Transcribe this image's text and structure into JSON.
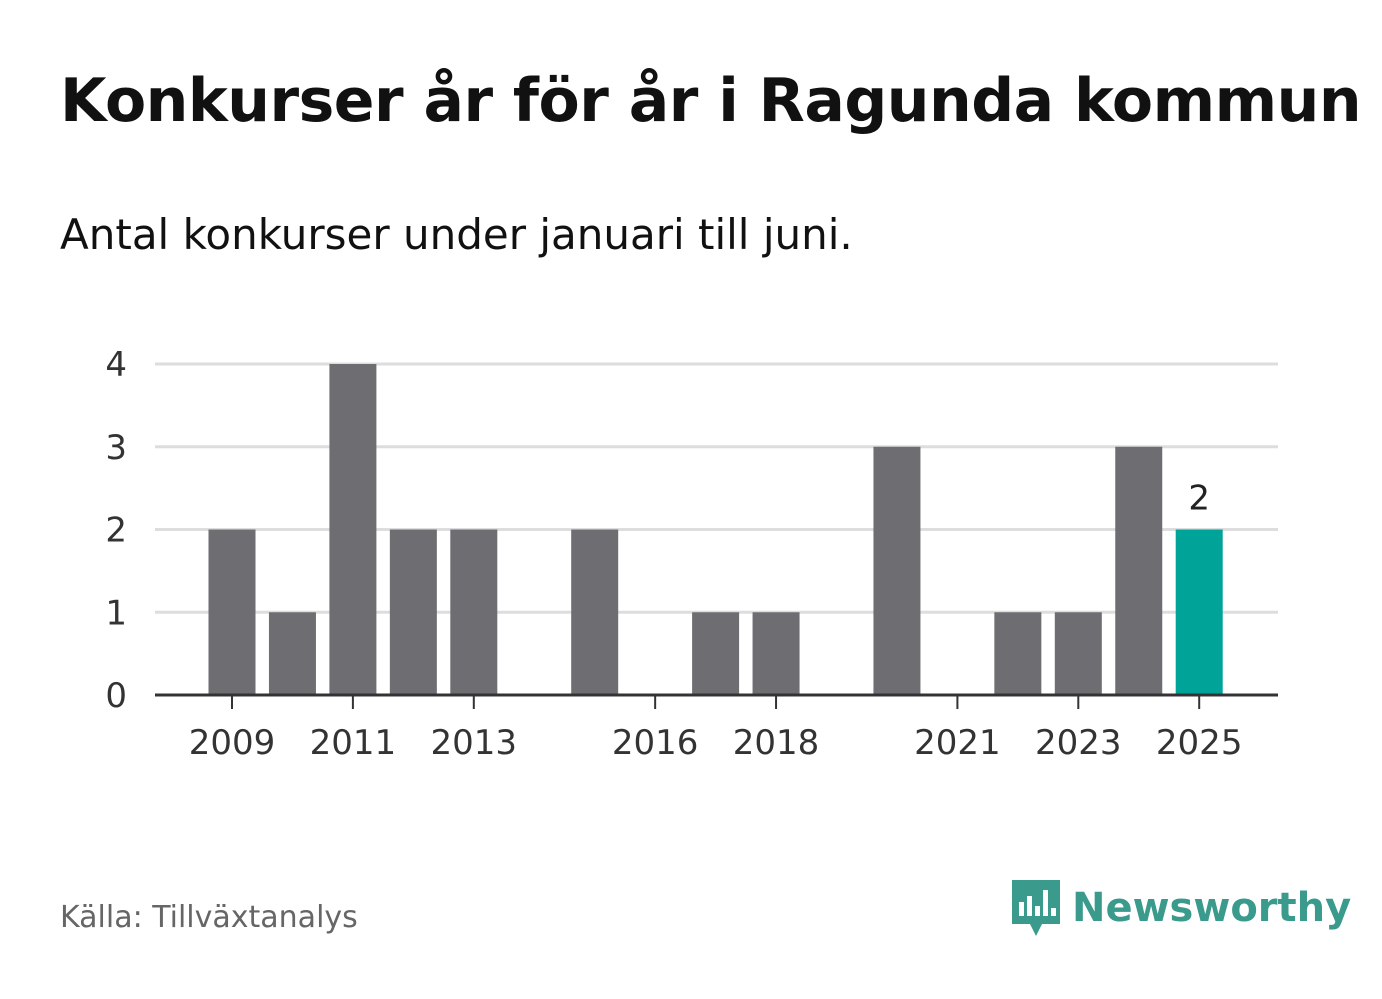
{
  "title": "Konkurser år för år i Ragunda kommun",
  "subtitle": "Antal konkurser under januari till juni.",
  "source": "Källa: Tillväxtanalys",
  "brand": {
    "name": "Newsworthy",
    "color": "#3a9a8c",
    "icon": "newsworthy-logo-icon"
  },
  "colors": {
    "bar": "#6e6d72",
    "highlight": "#00a398",
    "grid": "#dddddd",
    "axis": "#333333"
  },
  "chart_data": {
    "type": "bar",
    "categories": [
      "2009",
      "2010",
      "2011",
      "2012",
      "2013",
      "2014",
      "2015",
      "2016",
      "2017",
      "2018",
      "2019",
      "2020",
      "2021",
      "2022",
      "2023",
      "2024",
      "2025"
    ],
    "values": [
      2,
      1,
      4,
      2,
      2,
      0,
      2,
      0,
      1,
      1,
      0,
      3,
      0,
      1,
      1,
      3,
      2
    ],
    "x_tick_labels": [
      "2009",
      "2011",
      "2013",
      "2016",
      "2018",
      "2021",
      "2023",
      "2025"
    ],
    "y_ticks": [
      0,
      1,
      2,
      3,
      4
    ],
    "ylim": [
      0,
      4
    ],
    "highlight_category": "2025",
    "data_labels": [
      {
        "category": "2025",
        "text": "2"
      }
    ],
    "grid": true,
    "legend": "none"
  }
}
